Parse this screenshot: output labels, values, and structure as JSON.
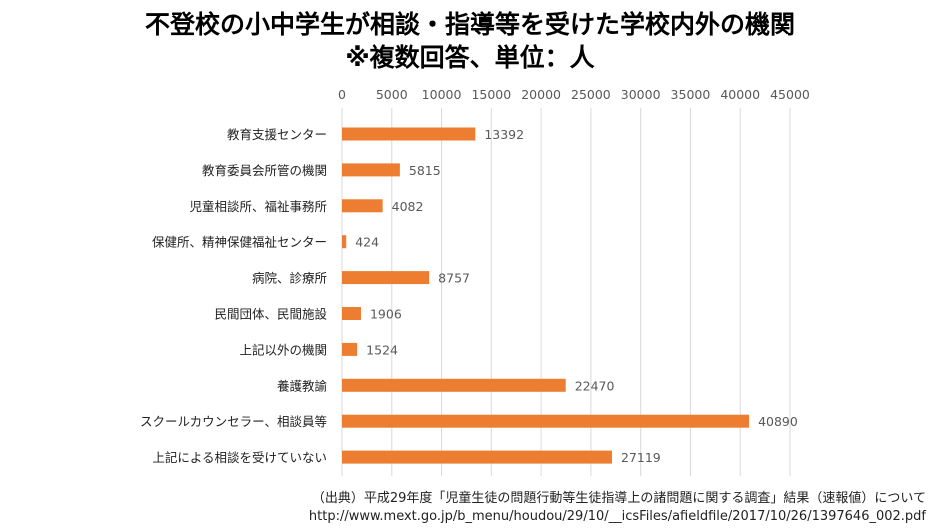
{
  "title_line1": "不登校の小中学生が相談・指導等を受けた学校内外の機関",
  "title_line2": "※複数回答、単位：人",
  "source_line1": "（出典）平成29年度「児童生徒の問題行動等生徒指導上の諸問題に関する調査」結果（速報値）について",
  "source_line2": "http://www.mext.go.jp/b_menu/houdou/29/10/__icsFiles/afieldfile/2017/10/26/1397646_002.pdf",
  "chart_data": {
    "type": "bar",
    "orientation": "horizontal",
    "categories": [
      "教育支援センター",
      "教育委員会所管の機関",
      "児童相談所、福祉事務所",
      "保健所、精神保健福祉センター",
      "病院、診療所",
      "民間団体、民間施設",
      "上記以外の機関",
      "養護教諭",
      "スクールカウンセラー、相談員等",
      "上記による相談を受けていない"
    ],
    "values": [
      13392,
      5815,
      4082,
      424,
      8757,
      1906,
      1524,
      22470,
      40890,
      27119
    ],
    "xlim": [
      0,
      45000
    ],
    "xticks": [
      0,
      5000,
      10000,
      15000,
      20000,
      25000,
      30000,
      35000,
      40000,
      45000
    ],
    "xaxis_position": "top",
    "grid": true,
    "bar_color": "#ed7d31",
    "data_labels": true
  }
}
